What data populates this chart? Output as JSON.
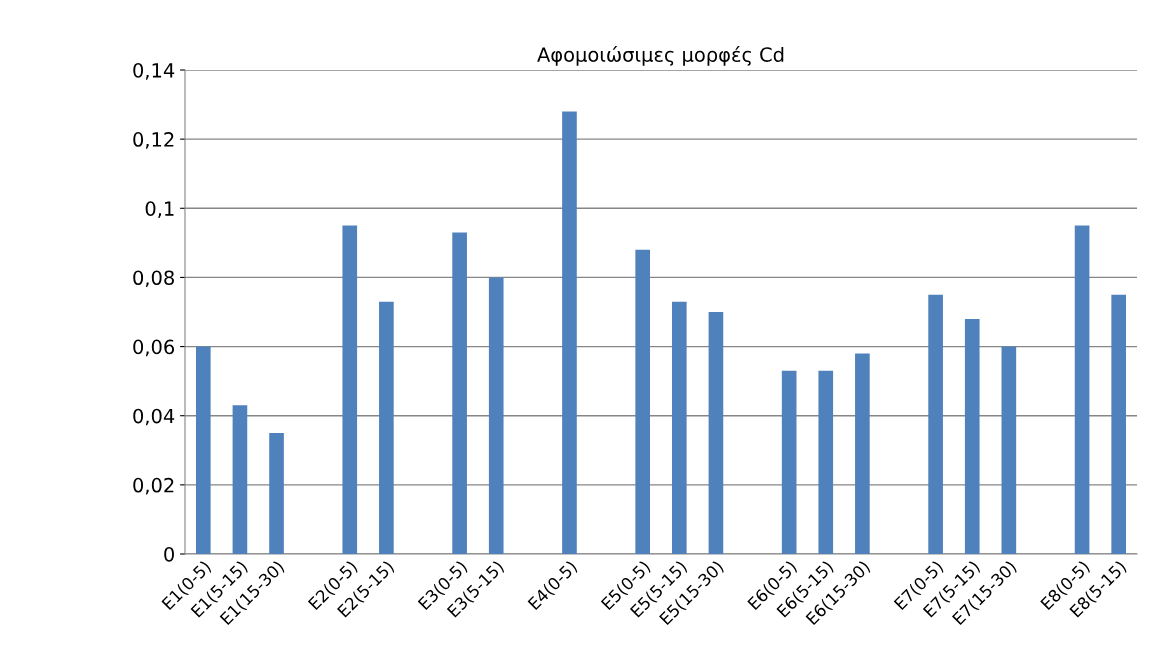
{
  "chart_data": {
    "type": "bar",
    "title": "Αφομοιώσιμες μορφές Cd",
    "categories": [
      "E1(0-5)",
      "E1(5-15)",
      "E1(15-30)",
      null,
      "E2(0-5)",
      "E2(5-15)",
      null,
      "E3(0-5)",
      "E3(5-15)",
      null,
      "E4(0-5)",
      null,
      "E5(0-5)",
      "E5(5-15)",
      "E5(15-30)",
      null,
      "E6(0-5)",
      "E6(5-15)",
      "E6(15-30)",
      null,
      "E7(0-5)",
      "E7(5-15)",
      "E7(15-30)",
      null,
      "E8(0-5)",
      "E8(5-15)"
    ],
    "values": [
      0.06,
      0.043,
      0.035,
      null,
      0.095,
      0.073,
      null,
      0.093,
      0.08,
      null,
      0.128,
      null,
      0.088,
      0.073,
      0.07,
      null,
      0.053,
      0.053,
      0.058,
      null,
      0.075,
      0.068,
      0.06,
      null,
      0.095,
      0.075
    ],
    "color": "#4f81bd",
    "ylim": [
      0,
      0.14
    ],
    "yticks": [
      0,
      {
        "value": 0.02,
        "label": "0,02"
      },
      {
        "value": 0.04,
        "label": "0,04"
      },
      {
        "value": 0.06,
        "label": "0,06"
      },
      {
        "value": 0.08,
        "label": "0,08"
      },
      {
        "value": 0.1,
        "label": "0,1"
      },
      {
        "value": 0.12,
        "label": "0,12"
      },
      {
        "value": 0.14,
        "label": "0,14"
      }
    ],
    "grid": "y",
    "legend": false
  }
}
